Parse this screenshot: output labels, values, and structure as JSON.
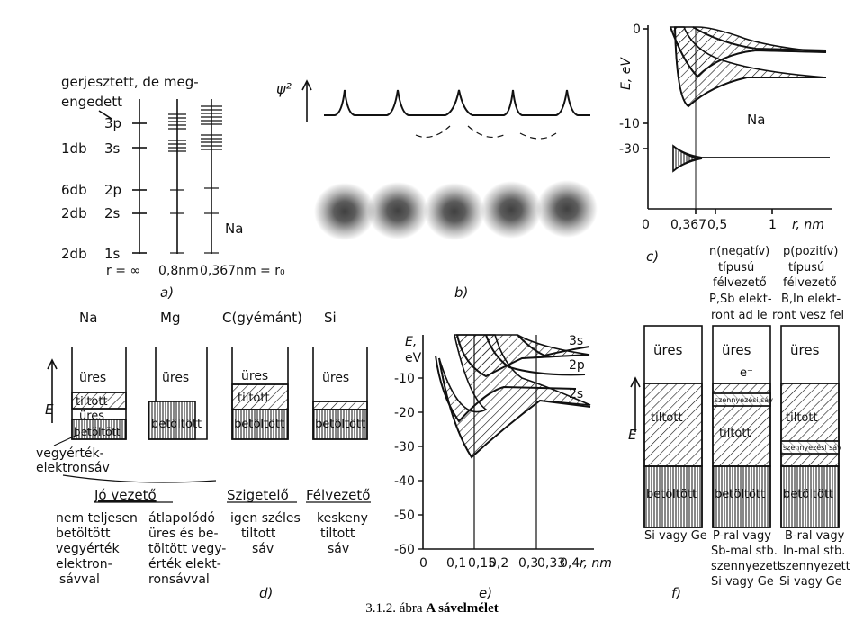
{
  "a": {
    "header_lines": [
      "gerjesztett, de meg-",
      "engedett"
    ],
    "levels": [
      "3p",
      "3s",
      "2p",
      "2s",
      "1s"
    ],
    "counts": [
      "1db",
      "6db",
      "2db",
      "2db"
    ],
    "col_labels": [
      "r = ∞",
      "0,8nm",
      "0,367nm = r₀"
    ],
    "element": "Na",
    "panel_label": "a)"
  },
  "b": {
    "ylabel": "ψ²",
    "panel_label": "b)"
  },
  "c": {
    "ylabel": "E, eV",
    "y_ticks": [
      "0",
      "-10",
      "-30"
    ],
    "x_ticks": [
      "0",
      "0,367",
      "0,5",
      "1"
    ],
    "xlabel": "r, nm",
    "element": "Na",
    "panel_label": "c)"
  },
  "d": {
    "col_titles": [
      "Na",
      "Mg",
      "C(gyémánt)",
      "Si"
    ],
    "band_labels": {
      "empty": "üres",
      "forbidden": "tiltott",
      "filled": "betöltött"
    },
    "e_axis": "E",
    "valence_label": [
      "vegyérték-",
      "elektronsáv"
    ],
    "groups": [
      "Jó vezető",
      "Szigetelő",
      "Félvezető"
    ],
    "desc1": [
      "nem teljesen",
      "betöltött",
      "vegyérték",
      "elektron-",
      "sávval"
    ],
    "desc2": [
      "átlapolódó",
      "üres és be-",
      "töltött vegy-",
      "érték elekt-",
      "ronsávval"
    ],
    "desc3": [
      "igen széles",
      "tiltott",
      "sáv"
    ],
    "desc4": [
      "keskeny",
      "tiltott",
      "sáv"
    ],
    "panel_label": "d)"
  },
  "e": {
    "ylabel": [
      "E,",
      "eV"
    ],
    "y_ticks": [
      "-10",
      "-20",
      "-30",
      "-40",
      "-50",
      "-60"
    ],
    "x_ticks": [
      "0",
      "0,1",
      "0,15",
      "0,2",
      "0,3",
      "0,33",
      "0,4"
    ],
    "xlabel": "r, nm",
    "band_labels": [
      "3s",
      "2p",
      "2s"
    ],
    "panel_label": "e)"
  },
  "f": {
    "header_n": [
      "n(negatív)",
      "típusú",
      "félvezető",
      "P,Sb elekt-",
      "ront ad le"
    ],
    "header_p": [
      "p(pozitív)",
      "típusú",
      "félvezető",
      "B,In elekt-",
      "ront vesz fel"
    ],
    "empty": "üres",
    "forbidden": "tiltott",
    "filled": "betöltött",
    "electron": "e⁻",
    "impurity": "szennyezési sáv",
    "e_axis": "E",
    "foot1": [
      "Si vagy Ge"
    ],
    "foot2": [
      "P-ral vagy",
      "Sb-mal stb.",
      "szennyezett",
      "Si vagy Ge"
    ],
    "foot3": [
      "B-ral vagy",
      "In-mal stb.",
      "szennyezett",
      "Si vagy Ge"
    ],
    "panel_label": "f)"
  },
  "caption": {
    "number": "3.1.2. ábra",
    "title": "A sávelmélet"
  }
}
